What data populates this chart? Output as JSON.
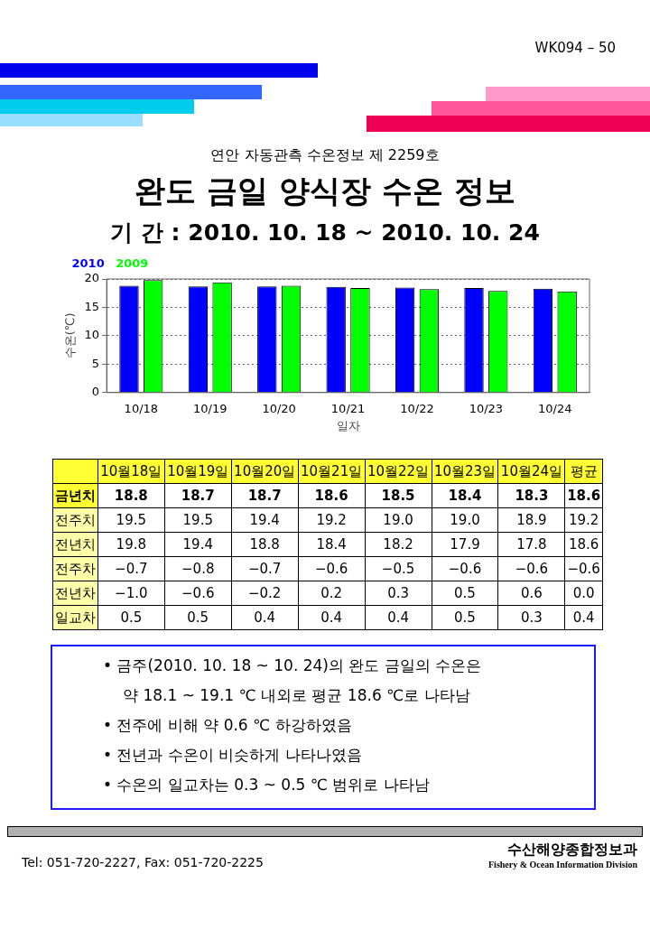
{
  "chart_data": [
    {
      "type": "bar",
      "subtitle": "연안 자동관측 수온정보 제 2259호",
      "title": "완도 금일 양식장 수온 정보",
      "annotations": [
        "WK094 – 50",
        "기 간 : 2010. 10. 18 ~ 2010. 10. 24"
      ],
      "categories": [
        "10/18",
        "10/19",
        "10/20",
        "10/21",
        "10/22",
        "10/23",
        "10/24"
      ],
      "series": [
        {
          "name": "2010",
          "color": "#0000ff",
          "values": [
            18.8,
            18.7,
            18.7,
            18.6,
            18.5,
            18.4,
            18.3
          ]
        },
        {
          "name": "2009",
          "color": "#00ff00",
          "values": [
            19.8,
            19.4,
            18.8,
            18.4,
            18.2,
            17.9,
            17.8
          ]
        }
      ],
      "xlabel": "일자",
      "ylabel": "수온(℃)",
      "ylim": [
        0,
        20
      ],
      "yticks": [
        0,
        5,
        10,
        15,
        20
      ],
      "grid": "y",
      "legend": "top left"
    },
    {
      "type": "other",
      "categories": [
        "10월18일",
        "10월19일",
        "10월20일",
        "10월21일",
        "10월22일",
        "10월23일",
        "10월24일",
        "평균"
      ],
      "series": [
        {
          "name": "금년치",
          "values": [
            18.8,
            18.7,
            18.7,
            18.6,
            18.5,
            18.4,
            18.3,
            18.6
          ],
          "value_labels": [
            "18.8",
            "18.7",
            "18.7",
            "18.6",
            "18.5",
            "18.4",
            "18.3",
            "18.6"
          ]
        },
        {
          "name": "전주치",
          "values": [
            19.5,
            19.5,
            19.4,
            19.2,
            19.0,
            19.0,
            18.9,
            19.2
          ],
          "value_labels": [
            "19.5",
            "19.5",
            "19.4",
            "19.2",
            "19.0",
            "19.0",
            "18.9",
            "19.2"
          ]
        },
        {
          "name": "전년치",
          "values": [
            19.8,
            19.4,
            18.8,
            18.4,
            18.2,
            17.9,
            17.8,
            18.6
          ],
          "value_labels": [
            "19.8",
            "19.4",
            "18.8",
            "18.4",
            "18.2",
            "17.9",
            "17.8",
            "18.6"
          ]
        },
        {
          "name": "전주차",
          "values": [
            -0.7,
            -0.8,
            -0.7,
            -0.6,
            -0.5,
            -0.6,
            -0.6,
            -0.6
          ],
          "value_labels": [
            "−0.7",
            "−0.8",
            "−0.7",
            "−0.6",
            "−0.5",
            "−0.6",
            "−0.6",
            "−0.6"
          ]
        },
        {
          "name": "전년차",
          "values": [
            -1.0,
            -0.6,
            -0.2,
            0.2,
            0.3,
            0.5,
            0.6,
            0.0
          ],
          "value_labels": [
            "−1.0",
            "−0.6",
            "−0.2",
            "0.2",
            "0.3",
            "0.5",
            "0.6",
            "0.0"
          ]
        },
        {
          "name": "일교차",
          "values": [
            0.5,
            0.5,
            0.4,
            0.4,
            0.4,
            0.5,
            0.3,
            0.4
          ],
          "value_labels": [
            "0.5",
            "0.5",
            "0.4",
            "0.4",
            "0.4",
            "0.5",
            "0.3",
            "0.4"
          ]
        }
      ],
      "annotations": [
        "• 금주(2010. 10. 18 ~ 10. 24)의 완도 금일의 수온은",
        "약 18.1 ~ 19.1 ℃ 내외로 평균 18.6 ℃로 나타남",
        "• 전주에 비해 약 0.6 ℃ 하강하였음",
        "• 전년과 수온이 비슷하게 나타나였음",
        "• 수온의 일교차는 0.3 ~ 0.5 ℃ 범위로 나타남",
        "Tel: 051-720-2227,  Fax: 051-720-2225",
        "수산해양종합정보과",
        "Fishery & Ocean Information Division"
      ]
    }
  ]
}
